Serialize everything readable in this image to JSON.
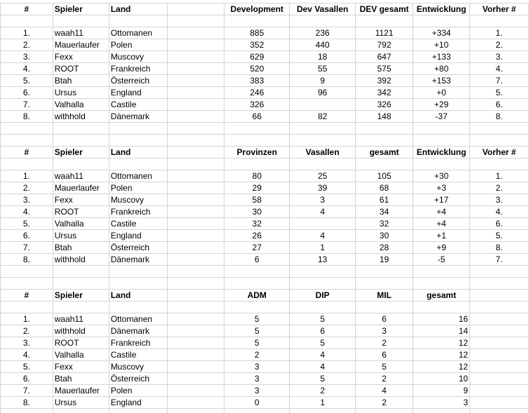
{
  "tables": [
    {
      "headers": [
        "#",
        "Spieler",
        "Land",
        null,
        "Development",
        "Dev Vasallen",
        "DEV gesamt",
        "Entwicklung",
        "Vorher #"
      ],
      "rows": [
        [
          "1.",
          "waah11",
          "Ottomanen",
          null,
          "885",
          "236",
          "1121",
          "+334",
          "1."
        ],
        [
          "2.",
          "Mauerlaufer",
          "Polen",
          null,
          "352",
          "440",
          "792",
          "+10",
          "2."
        ],
        [
          "3.",
          "Fexx",
          "Muscovy",
          null,
          "629",
          "18",
          "647",
          "+133",
          "3."
        ],
        [
          "4.",
          "ROOT",
          "Frankreich",
          null,
          "520",
          "55",
          "575",
          "+80",
          "4."
        ],
        [
          "5.",
          "Btah",
          "Österreich",
          null,
          "383",
          "9",
          "392",
          "+153",
          "7."
        ],
        [
          "6.",
          "Ursus",
          "England",
          null,
          "246",
          "96",
          "342",
          "+0",
          "5."
        ],
        [
          "7.",
          "Valhalla",
          "Castile",
          null,
          "326",
          null,
          "326",
          "+29",
          "6."
        ],
        [
          "8.",
          "withhold",
          "Dänemark",
          null,
          "66",
          "82",
          "148",
          "-37",
          "8."
        ]
      ]
    },
    {
      "headers": [
        "#",
        "Spieler",
        "Land",
        null,
        "Provinzen",
        "Vasallen",
        "gesamt",
        "Entwicklung",
        "Vorher #"
      ],
      "rows": [
        [
          "1.",
          "waah11",
          "Ottomanen",
          null,
          "80",
          "25",
          "105",
          "+30",
          "1."
        ],
        [
          "2.",
          "Mauerlaufer",
          "Polen",
          null,
          "29",
          "39",
          "68",
          "+3",
          "2."
        ],
        [
          "3.",
          "Fexx",
          "Muscovy",
          null,
          "58",
          "3",
          "61",
          "+17",
          "3."
        ],
        [
          "4.",
          "ROOT",
          "Frankreich",
          null,
          "30",
          "4",
          "34",
          "+4",
          "4."
        ],
        [
          "5.",
          "Valhalla",
          "Castile",
          null,
          "32",
          null,
          "32",
          "+4",
          "6."
        ],
        [
          "6.",
          "Ursus",
          "England",
          null,
          "26",
          "4",
          "30",
          "+1",
          "5."
        ],
        [
          "7.",
          "Btah",
          "Österreich",
          null,
          "27",
          "1",
          "28",
          "+9",
          "8."
        ],
        [
          "8.",
          "withhold",
          "Dänemark",
          null,
          "6",
          "13",
          "19",
          "-5",
          "7."
        ]
      ]
    },
    {
      "headers": [
        "#",
        "Spieler",
        "Land",
        null,
        "ADM",
        "DIP",
        "MIL",
        "gesamt",
        null
      ],
      "rows": [
        [
          "1.",
          "waah11",
          "Ottomanen",
          null,
          "5",
          "5",
          "6",
          "16",
          null
        ],
        [
          "2.",
          "withhold",
          "Dänemark",
          null,
          "5",
          "6",
          "3",
          "14",
          null
        ],
        [
          "3.",
          "ROOT",
          "Frankreich",
          null,
          "5",
          "5",
          "2",
          "12",
          null
        ],
        [
          "4.",
          "Valhalla",
          "Castile",
          null,
          "2",
          "4",
          "6",
          "12",
          null
        ],
        [
          "5.",
          "Fexx",
          "Muscovy",
          null,
          "3",
          "4",
          "5",
          "12",
          null
        ],
        [
          "6.",
          "Btah",
          "Österreich",
          null,
          "3",
          "5",
          "2",
          "10",
          null
        ],
        [
          "7.",
          "Mauerlaufer",
          "Polen",
          null,
          "3",
          "2",
          "4",
          "9",
          null
        ],
        [
          "8.",
          "Ursus",
          "England",
          null,
          "0",
          "1",
          "2",
          "3",
          null
        ]
      ]
    }
  ]
}
